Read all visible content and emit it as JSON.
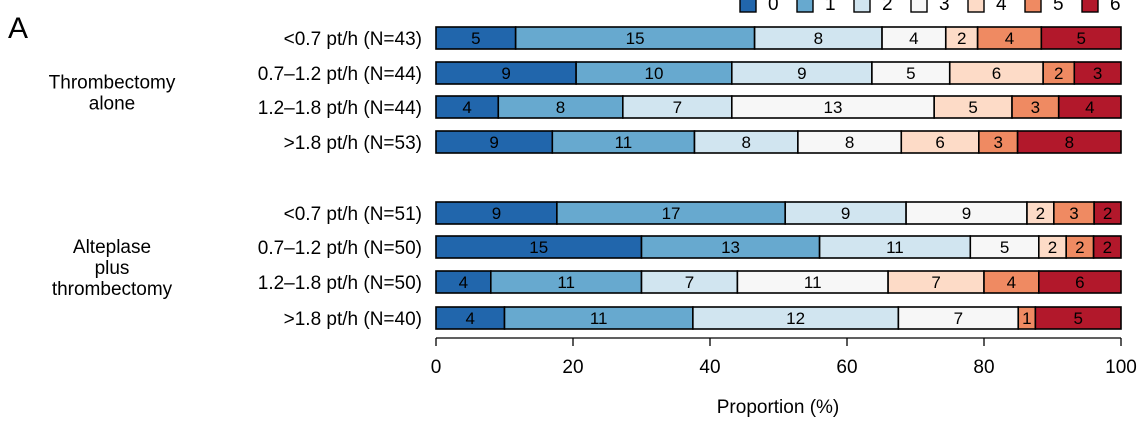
{
  "chart_data": {
    "type": "bar",
    "orientation": "horizontal",
    "stacked": "percent",
    "panel_label": "A",
    "xlabel": "Proportion (%)",
    "xlim": [
      0,
      100
    ],
    "xticks": [
      "0",
      "20",
      "40",
      "60",
      "80",
      "100"
    ],
    "legend": {
      "placement": "top-right",
      "entries": [
        "0",
        "1",
        "2",
        "3",
        "4",
        "5",
        "6"
      ]
    },
    "colors": [
      "#2166ac",
      "#67a9cf",
      "#d1e5f0",
      "#f7f7f7",
      "#fddbc7",
      "#ef8a62",
      "#b2182b"
    ],
    "groups": [
      {
        "name_lines": [
          "Thrombectomy",
          "alone"
        ],
        "rows": [
          {
            "label": "<0.7 pt/h (N=43)",
            "counts": [
              5,
              15,
              8,
              4,
              2,
              4,
              5
            ]
          },
          {
            "label": "0.7–1.2 pt/h (N=44)",
            "counts": [
              9,
              10,
              9,
              5,
              6,
              2,
              3
            ]
          },
          {
            "label": "1.2–1.8 pt/h (N=44)",
            "counts": [
              4,
              8,
              7,
              13,
              5,
              3,
              4
            ]
          },
          {
            "label": ">1.8 pt/h (N=53)",
            "counts": [
              9,
              11,
              8,
              8,
              6,
              3,
              8
            ]
          }
        ]
      },
      {
        "name_lines": [
          "Alteplase",
          "plus",
          "thrombectomy"
        ],
        "rows": [
          {
            "label": "<0.7 pt/h (N=51)",
            "counts": [
              9,
              17,
              9,
              9,
              2,
              3,
              2
            ]
          },
          {
            "label": "0.7–1.2 pt/h (N=50)",
            "counts": [
              15,
              13,
              11,
              5,
              2,
              2,
              2
            ]
          },
          {
            "label": "1.2–1.8 pt/h (N=50)",
            "counts": [
              4,
              11,
              7,
              11,
              7,
              4,
              6
            ]
          },
          {
            "label": ">1.8 pt/h (N=40)",
            "counts": [
              4,
              11,
              12,
              7,
              0,
              1,
              5
            ]
          }
        ]
      }
    ]
  }
}
